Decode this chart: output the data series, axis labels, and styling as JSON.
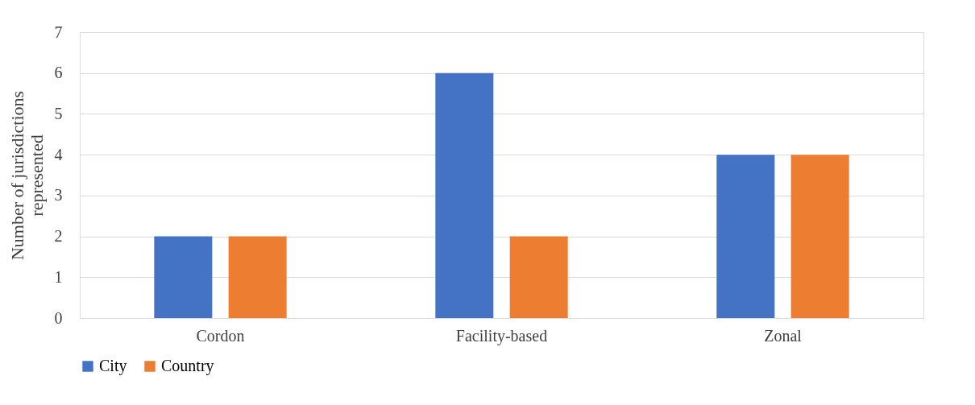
{
  "chart_data": {
    "type": "bar",
    "ylabel": "Number of jurisdictions\nrepresented",
    "categories": [
      "Cordon",
      "Facility-based",
      "Zonal"
    ],
    "series": [
      {
        "name": "City",
        "color": "#4472c4",
        "values": [
          2,
          6,
          4
        ]
      },
      {
        "name": "Country",
        "color": "#ed7d31",
        "values": [
          2,
          2,
          4
        ]
      }
    ],
    "ylim": [
      0,
      7
    ],
    "yticks": [
      0,
      1,
      2,
      3,
      4,
      5,
      6,
      7
    ],
    "grid": "y",
    "legend": "bottom"
  }
}
